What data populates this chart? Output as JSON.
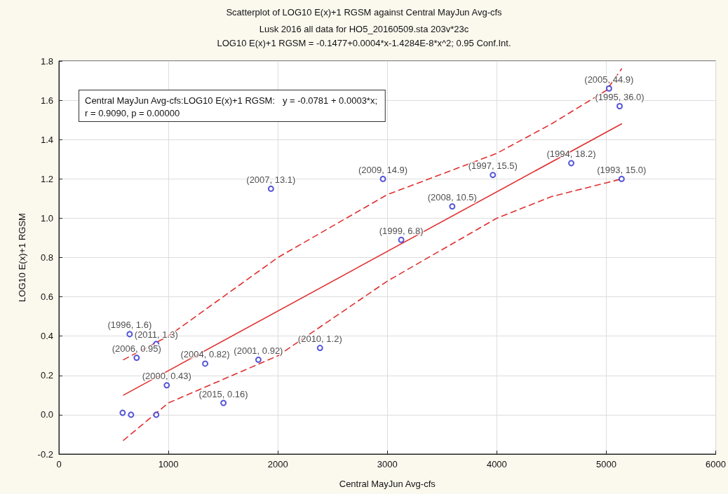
{
  "chart_data": {
    "type": "scatter",
    "title": "Scatterplot of LOG10 E(x)+1 RGSM against Central MayJun Avg-cfs",
    "subtitle": "Lusk 2016 all data for HO5_20160509.sta 203v*23c\nLOG10 E(x)+1 RGSM = -0.1477+0.0004*x-1.4284E-8*x^2; 0.95 Conf.Int.",
    "xlabel": "Central MayJun Avg-cfs",
    "ylabel": "LOG10 E(x)+1 RGSM",
    "annotations": [
      "Central MayJun Avg-cfs:LOG10 E(x)+1 RGSM:   y = -0.0781 + 0.0003*x;\nr = 0.9090, p = 0.00000"
    ],
    "xlim": [
      0,
      6000
    ],
    "xticks": [
      0,
      1000,
      2000,
      3000,
      4000,
      5000,
      6000
    ],
    "ylim": [
      -0.2,
      1.8
    ],
    "yticks": [
      -0.2,
      {
        "value": 0,
        "label": "0.0"
      },
      0.2,
      0.4,
      0.6,
      0.8,
      {
        "value": 1,
        "label": "1.0"
      },
      1.2,
      1.4,
      1.6,
      1.8
    ],
    "grid": true,
    "marker": "circle",
    "series": [
      {
        "color": "#2a2ad0",
        "x": [
          5025,
          5122,
          4680,
          5140,
          2960,
          3964,
          3593,
          3127,
          1937,
          646,
          889,
          710,
          1336,
          1822,
          2385,
          985,
          1503,
          582,
          659,
          889
        ],
        "values": [
          1.66,
          1.57,
          1.28,
          1.2,
          1.2,
          1.22,
          1.06,
          0.89,
          1.15,
          0.41,
          0.36,
          0.29,
          0.26,
          0.28,
          0.34,
          0.15,
          0.06,
          0.01,
          0,
          0
        ],
        "value_labels": [
          "(2005, 44.9)",
          "(1995, 36.0)",
          "(1994, 18.2)",
          "(1993, 15.0)",
          "(2009, 14.9)",
          "(1997, 15.5)",
          "(2008, 10.5)",
          "(1999, 6.8)",
          "(2007, 13.1)",
          "(1996, 1.6)",
          "(2011, 1.3)",
          "(2006, 0.95)",
          "(2004, 0.82)",
          "(2001, 0.92)",
          "(2010, 1.2)",
          "(2000, 0.43)",
          "(2015, 0.16)",
          null,
          null,
          null
        ]
      },
      {
        "type": "line",
        "color": "#e03030",
        "line_style": "solid",
        "marker": "none",
        "x": [
          590,
          5140
        ],
        "values": [
          0.1,
          1.48
        ]
      },
      {
        "type": "line",
        "color": "#e03030",
        "line_style": "dashed",
        "marker": "none",
        "x": [
          590,
          1000,
          2000,
          3000,
          4000,
          4500,
          5000,
          5140
        ],
        "values": [
          0.28,
          0.4,
          0.8,
          1.12,
          1.33,
          1.48,
          1.65,
          1.76
        ]
      },
      {
        "type": "line",
        "color": "#e03030",
        "line_style": "dashed",
        "marker": "none",
        "x": [
          590,
          1000,
          2000,
          3000,
          4000,
          4500,
          5000,
          5140
        ],
        "values": [
          -0.13,
          0.06,
          0.3,
          0.68,
          1.0,
          1.11,
          1.18,
          1.2
        ]
      }
    ]
  }
}
